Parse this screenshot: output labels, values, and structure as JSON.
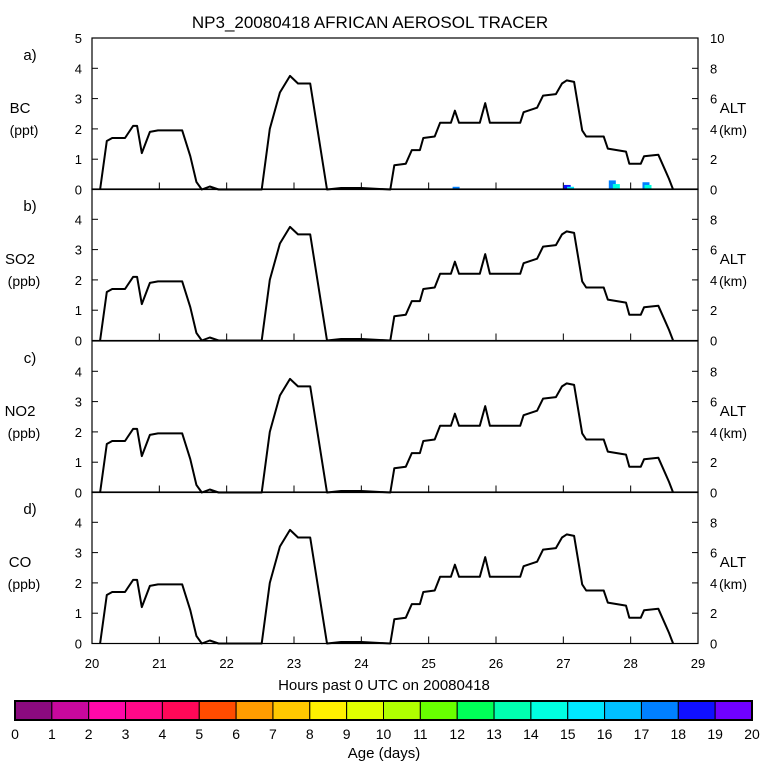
{
  "chart_data": {
    "type": "line",
    "title": "NP3_20080418 AFRICAN AEROSOL TRACER",
    "xlabel": "Hours past 0 UTC on 20080418",
    "xlim": [
      20,
      29
    ],
    "x_ticks": [
      "20",
      "21",
      "22",
      "23",
      "24",
      "25",
      "26",
      "27",
      "28",
      "29"
    ],
    "altitude_series": {
      "name": "ALT (km)",
      "x": [
        20.12,
        20.22,
        20.3,
        20.49,
        20.61,
        20.67,
        20.74,
        20.86,
        20.98,
        21.34,
        21.46,
        21.55,
        21.63,
        21.75,
        21.88,
        22.0,
        22.52,
        22.64,
        22.79,
        22.94,
        23.06,
        23.24,
        23.49,
        23.7,
        24.0,
        24.43,
        24.49,
        24.66,
        24.75,
        24.87,
        24.92,
        25.09,
        25.17,
        25.33,
        25.39,
        25.45,
        25.76,
        25.84,
        25.91,
        26.36,
        26.41,
        26.61,
        26.7,
        26.89,
        26.98,
        27.05,
        27.16,
        27.28,
        27.34,
        27.6,
        27.66,
        27.93,
        27.98,
        28.15,
        28.2,
        28.41,
        28.51,
        28.57,
        28.63
      ],
      "y": [
        0,
        3.2,
        3.4,
        3.4,
        4.2,
        4.2,
        2.4,
        3.8,
        3.9,
        3.9,
        2.2,
        0.5,
        0,
        0.2,
        0,
        0,
        0,
        4.0,
        6.4,
        7.5,
        7.0,
        7.0,
        0,
        0.1,
        0.1,
        0,
        1.6,
        1.7,
        2.6,
        2.6,
        3.4,
        3.5,
        4.4,
        4.4,
        5.2,
        4.4,
        4.4,
        5.7,
        4.4,
        4.4,
        5.1,
        5.4,
        6.2,
        6.3,
        7.0,
        7.2,
        7.1,
        3.9,
        3.5,
        3.5,
        2.7,
        2.5,
        1.7,
        1.7,
        2.2,
        2.3,
        1.3,
        0.7,
        0
      ]
    },
    "panels": [
      {
        "tag": "a)",
        "species": "BC",
        "unit": "(ppt)",
        "right_label": "ALT",
        "right_unit": "(km)",
        "ylim": [
          0,
          5
        ],
        "y_ticks": [
          "0",
          "1",
          "2",
          "3",
          "4",
          "5"
        ],
        "alt_ticks": [
          "0",
          "2",
          "4",
          "6",
          "8",
          "10"
        ],
        "altlim": [
          0,
          10
        ],
        "tracer": [
          {
            "x": 25.4,
            "value": 0.03,
            "age": 17
          },
          {
            "x": 27.05,
            "value": 0.05,
            "age": 18
          },
          {
            "x": 27.1,
            "value": 0.03,
            "age": 15
          },
          {
            "x": 27.72,
            "value": 0.1,
            "age": 17
          },
          {
            "x": 27.78,
            "value": 0.06,
            "age": 14
          },
          {
            "x": 28.22,
            "value": 0.08,
            "age": 17
          },
          {
            "x": 28.25,
            "value": 0.05,
            "age": 14
          }
        ]
      },
      {
        "tag": "b)",
        "species": "SO2",
        "unit": "(ppb)",
        "right_label": "ALT",
        "right_unit": "(km)",
        "ylim": [
          0,
          5
        ],
        "y_ticks": [
          "0",
          "1",
          "2",
          "3",
          "4"
        ],
        "alt_ticks": [
          "0",
          "2",
          "4",
          "6",
          "8"
        ],
        "altlim": [
          0,
          10
        ],
        "tracer": []
      },
      {
        "tag": "c)",
        "species": "NO2",
        "unit": "(ppb)",
        "right_label": "ALT",
        "right_unit": "(km)",
        "ylim": [
          0,
          5
        ],
        "y_ticks": [
          "0",
          "1",
          "2",
          "3",
          "4"
        ],
        "alt_ticks": [
          "0",
          "2",
          "4",
          "6",
          "8"
        ],
        "altlim": [
          0,
          10
        ],
        "tracer": []
      },
      {
        "tag": "d)",
        "species": "CO",
        "unit": "(ppb)",
        "right_label": "ALT",
        "right_unit": "(km)",
        "ylim": [
          0,
          5
        ],
        "y_ticks": [
          "0",
          "1",
          "2",
          "3",
          "4"
        ],
        "alt_ticks": [
          "0",
          "2",
          "4",
          "6",
          "8"
        ],
        "altlim": [
          0,
          10
        ],
        "tracer": []
      }
    ],
    "colorbar": {
      "label": "Age (days)",
      "ticks": [
        "0",
        "1",
        "2",
        "3",
        "4",
        "5",
        "6",
        "7",
        "8",
        "9",
        "10",
        "11",
        "12",
        "13",
        "14",
        "15",
        "16",
        "17",
        "18",
        "19",
        "20"
      ],
      "colors": [
        "#8b0a7f",
        "#c8089e",
        "#ff08a8",
        "#ff0888",
        "#ff0858",
        "#ff4c00",
        "#ff9c00",
        "#ffc800",
        "#fff000",
        "#e0ff00",
        "#b0ff00",
        "#68ff00",
        "#00ff58",
        "#00ffb0",
        "#00ffe0",
        "#00e8ff",
        "#00c0ff",
        "#0080ff",
        "#1010ff",
        "#7000ff"
      ]
    }
  }
}
